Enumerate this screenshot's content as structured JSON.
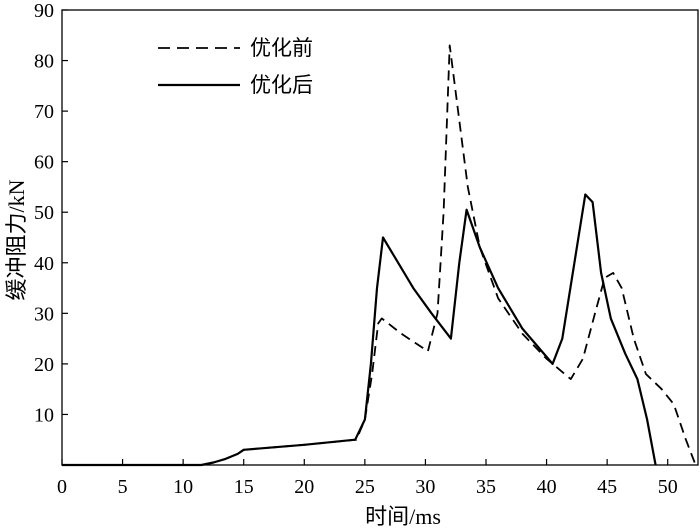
{
  "chart_data": {
    "type": "line",
    "xlabel": "时间/ms",
    "ylabel": "缓冲阻力/kN",
    "xlim": [
      0,
      52.5
    ],
    "ylim": [
      0,
      90
    ],
    "x_ticks": [
      0,
      5,
      10,
      15,
      20,
      25,
      30,
      35,
      40,
      45,
      50
    ],
    "y_ticks": [
      10,
      20,
      30,
      40,
      50,
      60,
      70,
      80,
      90
    ],
    "grid": false,
    "legend_position": "top-left",
    "series": [
      {
        "name": "优化前",
        "style": "dashed",
        "color": "#000000",
        "points": [
          [
            0,
            0
          ],
          [
            11.5,
            0
          ],
          [
            12.5,
            0.5
          ],
          [
            13.5,
            1.2
          ],
          [
            14.5,
            2.2
          ],
          [
            15,
            3
          ],
          [
            20,
            4
          ],
          [
            24.3,
            5
          ],
          [
            25,
            9
          ],
          [
            25.6,
            18
          ],
          [
            26.1,
            28
          ],
          [
            26.4,
            29
          ],
          [
            28,
            26
          ],
          [
            30.2,
            22.5
          ],
          [
            31,
            30
          ],
          [
            31.5,
            50
          ],
          [
            32,
            83
          ],
          [
            32.7,
            70
          ],
          [
            33.5,
            55
          ],
          [
            34.5,
            43
          ],
          [
            36,
            33
          ],
          [
            38,
            26
          ],
          [
            40,
            21
          ],
          [
            42,
            17
          ],
          [
            43,
            21
          ],
          [
            44,
            30
          ],
          [
            44.8,
            37
          ],
          [
            45.5,
            38
          ],
          [
            46.2,
            35
          ],
          [
            47.2,
            25
          ],
          [
            48.2,
            18
          ],
          [
            49.5,
            15
          ],
          [
            50.5,
            12
          ],
          [
            51.5,
            5
          ],
          [
            52.3,
            0
          ]
        ]
      },
      {
        "name": "优化后",
        "style": "solid",
        "color": "#000000",
        "points": [
          [
            0,
            0
          ],
          [
            11.5,
            0
          ],
          [
            12.5,
            0.5
          ],
          [
            13.5,
            1.2
          ],
          [
            14.5,
            2.2
          ],
          [
            15,
            3
          ],
          [
            20,
            4
          ],
          [
            24.2,
            5
          ],
          [
            25,
            9
          ],
          [
            25.5,
            20
          ],
          [
            26,
            35
          ],
          [
            26.5,
            45
          ],
          [
            27.5,
            41
          ],
          [
            29,
            35
          ],
          [
            30.5,
            30
          ],
          [
            32.1,
            25
          ],
          [
            32.8,
            40
          ],
          [
            33.4,
            50.5
          ],
          [
            34.5,
            43
          ],
          [
            36,
            35
          ],
          [
            38,
            27
          ],
          [
            40.5,
            20
          ],
          [
            41.3,
            25
          ],
          [
            42.3,
            40
          ],
          [
            43.2,
            53.5
          ],
          [
            43.8,
            52
          ],
          [
            44.5,
            38
          ],
          [
            45.3,
            29
          ],
          [
            46.5,
            22
          ],
          [
            47.5,
            17
          ],
          [
            48.3,
            9
          ],
          [
            49,
            0
          ]
        ]
      }
    ]
  }
}
